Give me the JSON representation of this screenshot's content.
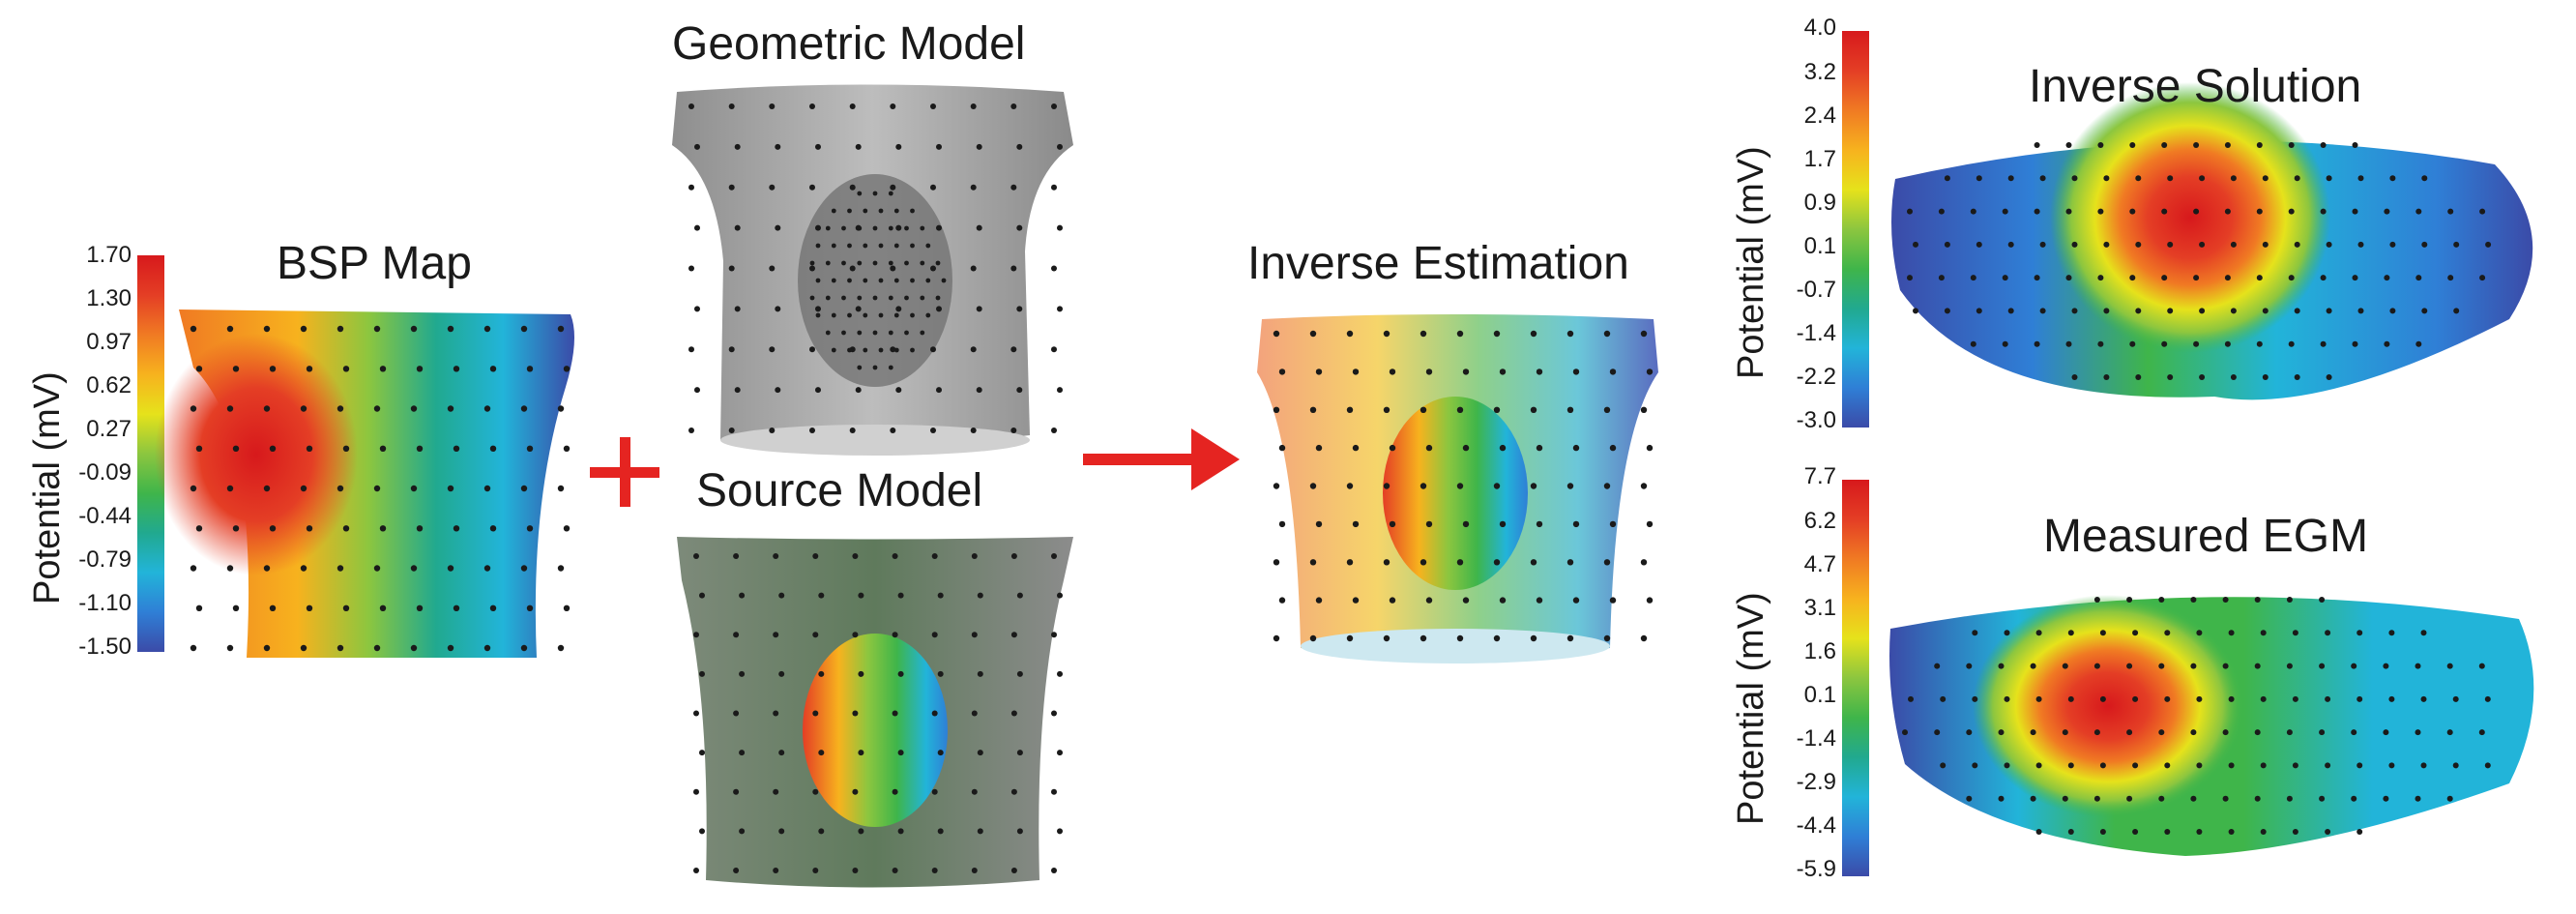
{
  "panels": {
    "bsp": {
      "title": "BSP Map",
      "colorbar": {
        "label": "Potential (mV)",
        "ticks": [
          "1.70",
          "1.30",
          "0.97",
          "0.62",
          "0.27",
          "-0.09",
          "-0.44",
          "-0.79",
          "-1.10",
          "-1.50"
        ]
      }
    },
    "geometric": {
      "title": "Geometric Model"
    },
    "source": {
      "title": "Source Model"
    },
    "inverse_estimation": {
      "title": "Inverse Estimation"
    },
    "inverse_solution": {
      "title": "Inverse Solution",
      "colorbar": {
        "label": "Potential (mV)",
        "ticks": [
          "4.0",
          "3.2",
          "2.4",
          "1.7",
          "0.9",
          "0.1",
          "-0.7",
          "-1.4",
          "-2.2",
          "-3.0"
        ]
      }
    },
    "measured_egm": {
      "title": "Measured EGM",
      "colorbar": {
        "label": "Potential (mV)",
        "ticks": [
          "7.7",
          "6.2",
          "4.7",
          "3.1",
          "1.6",
          "0.1",
          "-1.4",
          "-2.9",
          "-4.4",
          "-5.9"
        ]
      }
    }
  },
  "colormap": [
    "#3b4ba8",
    "#2f7fd6",
    "#22b4d9",
    "#21a98f",
    "#3fb54a",
    "#8cc63f",
    "#e6e21b",
    "#f7b21e",
    "#f07a23",
    "#e43e25",
    "#d7191c"
  ],
  "operators": {
    "plus_color": "#e52421",
    "arrow_color": "#e52421"
  }
}
